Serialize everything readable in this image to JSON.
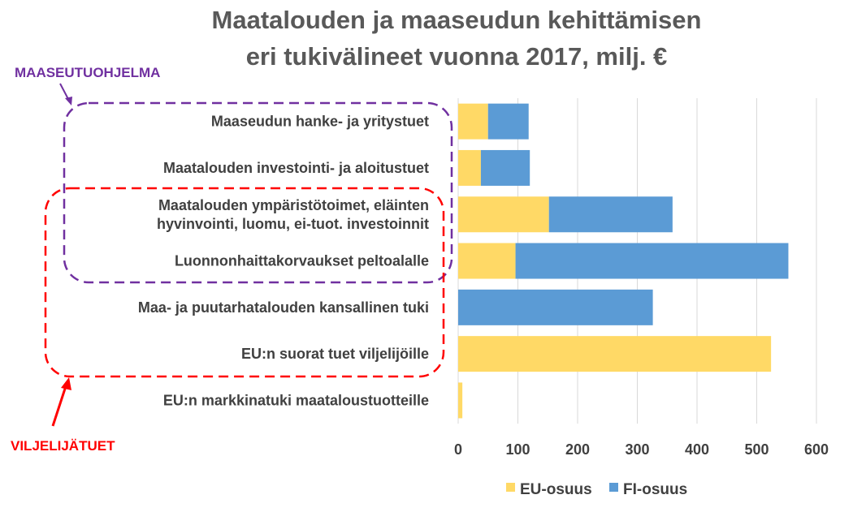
{
  "chart_data": {
    "type": "bar",
    "orientation": "horizontal",
    "stacked": true,
    "title": [
      "Maatalouden ja maaseudun kehittämisen",
      "eri tukivälineet vuonna 2017, milj. €"
    ],
    "categories": [
      [
        "Maaseudun hanke- ja yritystuet"
      ],
      [
        "Maatalouden investointi- ja aloitustuet"
      ],
      [
        "Maatalouden ympäristötoimet, eläinten",
        "hyvinvointi, luomu, ei-tuot. investoinnit"
      ],
      [
        "Luonnonhaittakorvaukset peltoalalle"
      ],
      [
        "Maa- ja puutarhatalouden kansallinen tuki"
      ],
      [
        "EU:n suorat tuet viljelijöille"
      ],
      [
        "EU:n markkinatuki maataloustuotteille"
      ]
    ],
    "series": [
      {
        "name": "EU-osuus",
        "color": "#ffd966",
        "values": [
          50,
          38,
          152,
          96,
          0,
          524,
          7
        ]
      },
      {
        "name": "FI-osuus",
        "color": "#5b9bd5",
        "values": [
          68,
          82,
          207,
          457,
          326,
          0,
          0
        ]
      }
    ],
    "xlim": [
      0,
      600
    ],
    "xticks": [
      0,
      100,
      200,
      300,
      400,
      500,
      600
    ],
    "grid": true,
    "legend": "bottom",
    "annotations": [
      {
        "text": "MAASEUTUOHJELMA",
        "color": "#7030a0",
        "groups_categories": [
          0,
          1,
          2,
          3
        ]
      },
      {
        "text": "VILJELIJÄTUET",
        "color": "#ff0000",
        "groups_categories": [
          2,
          3,
          4,
          5
        ]
      }
    ]
  }
}
